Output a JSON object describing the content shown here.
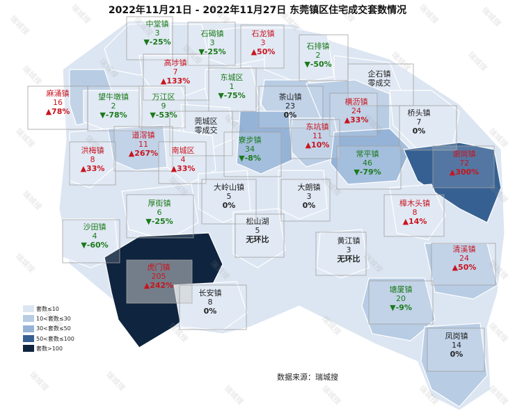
{
  "title": "2022年11月21日 - 2022年11月27日 东莞镇区住宅成交套数情况",
  "source": "数据来源：瑞城搜",
  "watermark": "瑞城搜",
  "colors": {
    "c1": "#dce6f2",
    "c2": "#b8cce4",
    "c3": "#95b3d7",
    "c4": "#366092",
    "c5": "#0f243e",
    "border": "#ffffff",
    "up": "#c8141e",
    "down": "#1a7a1a"
  },
  "legend": [
    {
      "label": "套数≤10",
      "color": "#dce6f2"
    },
    {
      "label": "10<套数≤30",
      "color": "#b8cce4"
    },
    {
      "label": "30<套数≤50",
      "color": "#95b3d7"
    },
    {
      "label": "50<套数≤100",
      "color": "#366092"
    },
    {
      "label": "套数>100",
      "color": "#0f243e"
    }
  ],
  "towns": [
    {
      "name": "中堂镇",
      "count": "3",
      "change": "▼-25%",
      "dir": "down"
    },
    {
      "name": "石碣镇",
      "count": "3",
      "change": "▼-25%",
      "dir": "down"
    },
    {
      "name": "石龙镇",
      "count": "3",
      "change": "▲50%",
      "dir": "up"
    },
    {
      "name": "石排镇",
      "count": "2",
      "change": "▼-50%",
      "dir": "down"
    },
    {
      "name": "高埗镇",
      "count": "7",
      "change": "▲133%",
      "dir": "up"
    },
    {
      "name": "东城区",
      "count": "1",
      "change": "▼-75%",
      "dir": "down"
    },
    {
      "name": "企石镇",
      "count": "零成交",
      "change": "",
      "dir": "flat"
    },
    {
      "name": "麻涌镇",
      "count": "16",
      "change": "▲78%",
      "dir": "up"
    },
    {
      "name": "望牛墩镇",
      "count": "2",
      "change": "▼-78%",
      "dir": "down"
    },
    {
      "name": "万江区",
      "count": "9",
      "change": "▼-53%",
      "dir": "down"
    },
    {
      "name": "茶山镇",
      "count": "23",
      "change": "0%",
      "dir": "flat"
    },
    {
      "name": "横沥镇",
      "count": "24",
      "change": "▲33%",
      "dir": "up"
    },
    {
      "name": "桥头镇",
      "count": "7",
      "change": "0%",
      "dir": "flat"
    },
    {
      "name": "莞城区",
      "count": "零成交",
      "change": "",
      "dir": "flat"
    },
    {
      "name": "道滘镇",
      "count": "11",
      "change": "▲267%",
      "dir": "up"
    },
    {
      "name": "东坑镇",
      "count": "11",
      "change": "▲10%",
      "dir": "up"
    },
    {
      "name": "洪梅镇",
      "count": "8",
      "change": "▲33%",
      "dir": "up"
    },
    {
      "name": "南城区",
      "count": "4",
      "change": "▲33%",
      "dir": "up"
    },
    {
      "name": "寮步镇",
      "count": "34",
      "change": "▼-8%",
      "dir": "down"
    },
    {
      "name": "常平镇",
      "count": "46",
      "change": "▼-79%",
      "dir": "down"
    },
    {
      "name": "谢岗镇",
      "count": "72",
      "change": "▲300%",
      "dir": "up"
    },
    {
      "name": "大岭山镇",
      "count": "5",
      "change": "0%",
      "dir": "flat"
    },
    {
      "name": "大朗镇",
      "count": "3",
      "change": "0%",
      "dir": "flat"
    },
    {
      "name": "厚街镇",
      "count": "6",
      "change": "▼-25%",
      "dir": "down"
    },
    {
      "name": "樟木头镇",
      "count": "8",
      "change": "▲14%",
      "dir": "up"
    },
    {
      "name": "松山湖",
      "count": "5",
      "change": "无环比",
      "dir": "flat"
    },
    {
      "name": "沙田镇",
      "count": "4",
      "change": "▼-60%",
      "dir": "down"
    },
    {
      "name": "黄江镇",
      "count": "3",
      "change": "无环比",
      "dir": "flat"
    },
    {
      "name": "清溪镇",
      "count": "24",
      "change": "▲50%",
      "dir": "up"
    },
    {
      "name": "虎门镇",
      "count": "205",
      "change": "▲242%",
      "dir": "up"
    },
    {
      "name": "长安镇",
      "count": "8",
      "change": "0%",
      "dir": "flat"
    },
    {
      "name": "塘厦镇",
      "count": "20",
      "change": "▼-9%",
      "dir": "down"
    },
    {
      "name": "凤岗镇",
      "count": "14",
      "change": "0%",
      "dir": "flat"
    }
  ]
}
